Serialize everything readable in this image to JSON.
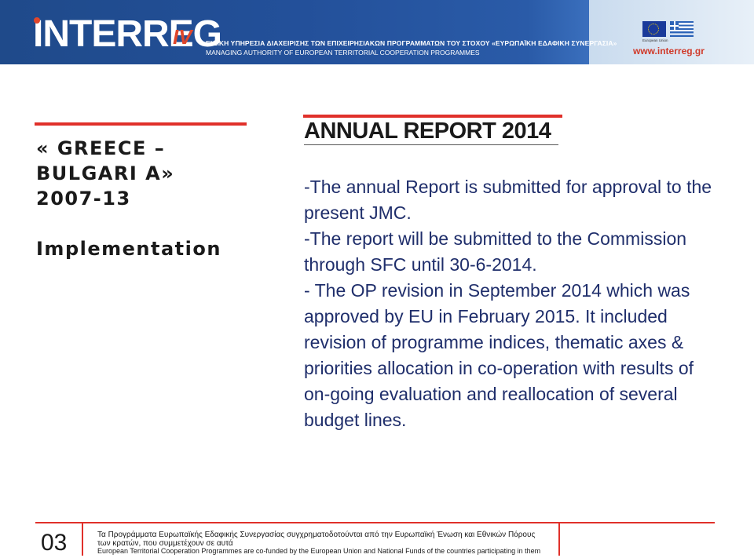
{
  "header": {
    "logo_text": "INTERREG",
    "logo_suffix": "IV",
    "authority_greek": "ΕΙΔΙΚΗ ΥΠΗΡΕΣΙΑ ΔΙΑΧΕΙΡΙΣΗΣ ΤΩΝ ΕΠΙΧΕΙΡΗΣΙΑΚΩΝ ΠΡΟΓΡΑΜΜΑΤΩΝ ΤΟΥ ΣΤΟΧΟΥ «ΕΥΡΩΠΑΪΚΗ ΕΔΑΦΙΚΗ ΣΥΝΕΡΓΑΣΙΑ»",
    "authority_english": "MANAGING AUTHORITY OF EUROPEAN TERRITORIAL COOPERATION PROGRAMMES",
    "eu_caption": "European Union",
    "url": "www.interreg.gr",
    "eu_flag_icon": "eu-flag-icon",
    "greek_flag_icon": "greek-flag-icon"
  },
  "sidebar": {
    "programme_line1": "« GREECE –",
    "programme_line2": "BULGARI A»",
    "programme_line3": "2007-13",
    "section": "Implementation"
  },
  "main": {
    "title": "ANNUAL REPORT 2014",
    "paragraphs": [
      "-The annual Report is submitted for approval to the present JMC.",
      "-The report will be submitted to the Commission through SFC until 30-6-2014.",
      "- The OP revision in September 2014 which was approved by EU in February 2015. It included revision of programme indices, thematic axes & priorities allocation in co-operation with results of on-going evaluation and reallocation of several budget lines."
    ]
  },
  "footer": {
    "page_number": "03",
    "funding_greek": "Τα Προγράμματα Ευρωπαϊκής Εδαφικής Συνεργασίας συγχρηματοδοτούνται από την Ευρωπαϊκή Ένωση και Εθνικών Πόρους των κρατών, που συμμετέχουν σε αυτά",
    "funding_english": "European Territorial Cooperation Programmes are co-funded by the European Union and National Funds of the countries participating in them"
  },
  "colors": {
    "header_blue": "#23509a",
    "accent_red": "#e0302a",
    "body_text": "#1f2e6b"
  }
}
